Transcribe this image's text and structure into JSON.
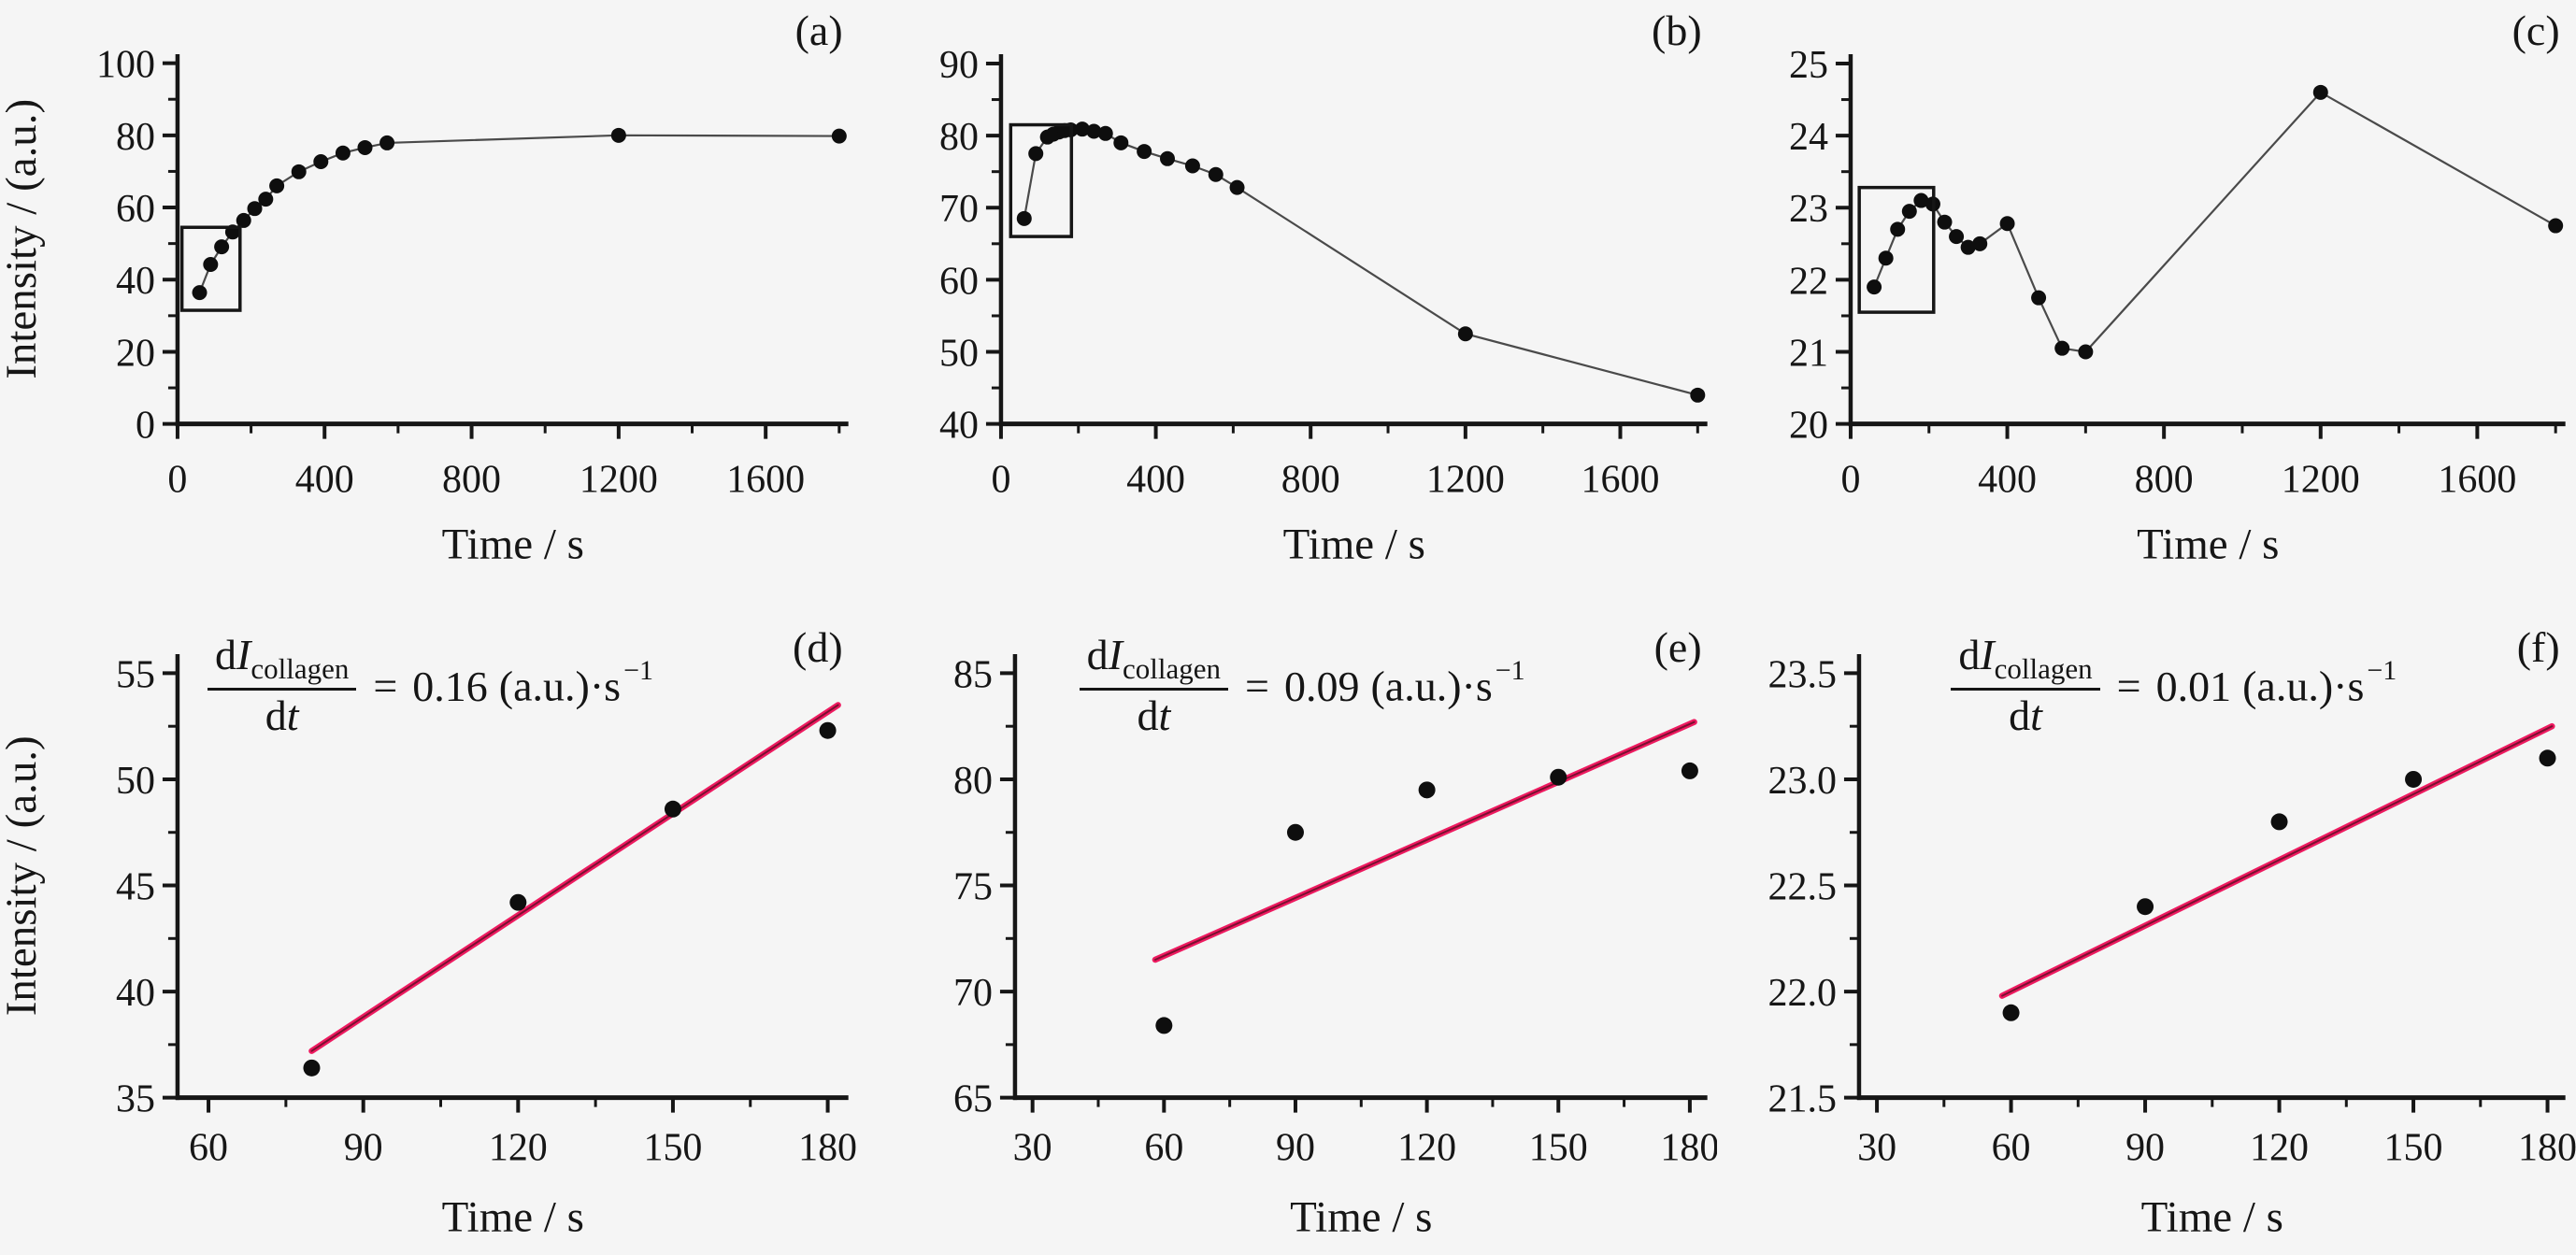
{
  "figure": {
    "background": "#f5f5f5",
    "accent_pink": "#ee1a60",
    "fit_core": "#7a1030",
    "axis_color": "#161616",
    "point_color": "#0e0e0e",
    "series_line_color": "#4a4a4a"
  },
  "chart_data": [
    {
      "id": "a",
      "label": "(a)",
      "type": "line",
      "xlabel": "Time / s",
      "ylabel": "Intensity / (a.u.)",
      "xlim": [
        0,
        1825
      ],
      "ylim": [
        0,
        102.5
      ],
      "xticks": [
        0,
        400,
        800,
        1200,
        1600
      ],
      "xticklabels": [
        "0",
        "400",
        "800",
        "1200",
        "1600"
      ],
      "xminor": [
        200,
        600,
        1000,
        1400,
        1800
      ],
      "yticks": [
        0,
        20,
        40,
        60,
        80,
        100
      ],
      "yticklabels": [
        "0",
        "20",
        "40",
        "60",
        "80",
        "100"
      ],
      "yminor": [
        10,
        30,
        50,
        70,
        90
      ],
      "connect": true,
      "points": [
        [
          60,
          36.4
        ],
        [
          90,
          44.2
        ],
        [
          120,
          49.1
        ],
        [
          150,
          53.2
        ],
        [
          180,
          56.4
        ],
        [
          210,
          59.7
        ],
        [
          240,
          62.3
        ],
        [
          270,
          66.0
        ],
        [
          330,
          69.9
        ],
        [
          390,
          72.7
        ],
        [
          450,
          75.1
        ],
        [
          510,
          76.6
        ],
        [
          570,
          77.9
        ],
        [
          1200,
          80.0
        ],
        [
          1800,
          79.8
        ]
      ],
      "inset_box": {
        "x0": 12,
        "x1": 170,
        "y0": 31.5,
        "y1": 54.5
      }
    },
    {
      "id": "b",
      "label": "(b)",
      "type": "line",
      "xlabel": "Time / s",
      "ylabel": "",
      "xlim": [
        0,
        1825
      ],
      "ylim": [
        40,
        91.3
      ],
      "xticks": [
        0,
        400,
        800,
        1200,
        1600
      ],
      "xticklabels": [
        "0",
        "400",
        "800",
        "1200",
        "1600"
      ],
      "xminor": [
        200,
        600,
        1000,
        1400,
        1800
      ],
      "yticks": [
        40,
        50,
        60,
        70,
        80,
        90
      ],
      "yticklabels": [
        "40",
        "50",
        "60",
        "70",
        "80",
        "90"
      ],
      "yminor": [
        45,
        55,
        65,
        75,
        85
      ],
      "connect": true,
      "points": [
        [
          60,
          68.5
        ],
        [
          90,
          77.5
        ],
        [
          120,
          79.8
        ],
        [
          135,
          80.2
        ],
        [
          150,
          80.5
        ],
        [
          165,
          80.7
        ],
        [
          180,
          80.8
        ],
        [
          210,
          80.9
        ],
        [
          240,
          80.6
        ],
        [
          270,
          80.3
        ],
        [
          310,
          79.0
        ],
        [
          370,
          77.8
        ],
        [
          430,
          76.8
        ],
        [
          495,
          75.8
        ],
        [
          555,
          74.6
        ],
        [
          610,
          72.8
        ],
        [
          1200,
          52.5
        ],
        [
          1800,
          44.0
        ]
      ],
      "inset_box": {
        "x0": 25,
        "x1": 182,
        "y0": 66.0,
        "y1": 81.5
      }
    },
    {
      "id": "c",
      "label": "(c)",
      "type": "line",
      "xlabel": "Time / s",
      "ylabel": "",
      "xlim": [
        0,
        1825
      ],
      "ylim": [
        20,
        25.13
      ],
      "xticks": [
        0,
        400,
        800,
        1200,
        1600
      ],
      "xticklabels": [
        "0",
        "400",
        "800",
        "1200",
        "1600"
      ],
      "xminor": [
        200,
        600,
        1000,
        1400,
        1800
      ],
      "yticks": [
        20,
        21,
        22,
        23,
        24,
        25
      ],
      "yticklabels": [
        "20",
        "21",
        "22",
        "23",
        "24",
        "25"
      ],
      "yminor": [
        20.5,
        21.5,
        22.5,
        23.5,
        24.5
      ],
      "connect": true,
      "points": [
        [
          60,
          21.9
        ],
        [
          90,
          22.3
        ],
        [
          120,
          22.7
        ],
        [
          150,
          22.95
        ],
        [
          180,
          23.1
        ],
        [
          210,
          23.05
        ],
        [
          240,
          22.8
        ],
        [
          270,
          22.6
        ],
        [
          300,
          22.45
        ],
        [
          330,
          22.5
        ],
        [
          400,
          22.78
        ],
        [
          480,
          21.75
        ],
        [
          540,
          21.05
        ],
        [
          600,
          21.0
        ],
        [
          1200,
          24.6
        ],
        [
          1800,
          22.75
        ]
      ],
      "inset_box": {
        "x0": 22,
        "x1": 212,
        "y0": 21.55,
        "y1": 23.28
      }
    },
    {
      "id": "d",
      "label": "(d)",
      "type": "scatter",
      "xlabel": "Time / s",
      "ylabel": "Intensity / (a.u.)",
      "xlim": [
        54,
        184
      ],
      "ylim": [
        35,
        55.9
      ],
      "xticks": [
        60,
        90,
        120,
        150,
        180
      ],
      "xticklabels": [
        "60",
        "90",
        "120",
        "150",
        "180"
      ],
      "xminor": [
        75,
        105,
        135,
        165
      ],
      "yticks": [
        35,
        40,
        45,
        50,
        55
      ],
      "yticklabels": [
        "35",
        "40",
        "45",
        "50",
        "55"
      ],
      "yminor": [
        37.5,
        42.5,
        47.5,
        52.5
      ],
      "connect": false,
      "points": [
        [
          80,
          36.4
        ],
        [
          120,
          44.2
        ],
        [
          150,
          48.6
        ],
        [
          180,
          52.3
        ]
      ],
      "fit_line": {
        "x0": 80,
        "y0": 37.2,
        "x1": 182,
        "y1": 53.5
      },
      "equation": {
        "d1": "d",
        "I": "I",
        "subscript": "collagen",
        "d2": "d",
        "t": "t",
        "equals": "=",
        "rate": "0.16",
        "unit": "(a.u.)·s",
        "exponent": "−1"
      }
    },
    {
      "id": "e",
      "label": "(e)",
      "type": "scatter",
      "xlabel": "Time / s",
      "ylabel": "",
      "xlim": [
        26,
        184
      ],
      "ylim": [
        65,
        85.9
      ],
      "xticks": [
        30,
        60,
        90,
        120,
        150,
        180
      ],
      "xticklabels": [
        "30",
        "60",
        "90",
        "120",
        "150",
        "180"
      ],
      "xminor": [
        45,
        75,
        105,
        135,
        165
      ],
      "yticks": [
        65,
        70,
        75,
        80,
        85
      ],
      "yticklabels": [
        "65",
        "70",
        "75",
        "80",
        "85"
      ],
      "yminor": [
        67.5,
        72.5,
        77.5,
        82.5
      ],
      "connect": false,
      "points": [
        [
          60,
          68.4
        ],
        [
          90,
          77.5
        ],
        [
          120,
          79.5
        ],
        [
          150,
          80.1
        ],
        [
          180,
          80.4
        ]
      ],
      "fit_line": {
        "x0": 58,
        "y0": 71.5,
        "x1": 181,
        "y1": 82.7
      },
      "equation": {
        "d1": "d",
        "I": "I",
        "subscript": "collagen",
        "d2": "d",
        "t": "t",
        "equals": "=",
        "rate": "0.09",
        "unit": "(a.u.)·s",
        "exponent": "−1"
      }
    },
    {
      "id": "f",
      "label": "(f)",
      "type": "scatter",
      "xlabel": "Time / s",
      "ylabel": "",
      "xlim": [
        26,
        184
      ],
      "ylim": [
        21.5,
        23.59
      ],
      "xticks": [
        30,
        60,
        90,
        120,
        150,
        180
      ],
      "xticklabels": [
        "30",
        "60",
        "90",
        "120",
        "150",
        "180"
      ],
      "xminor": [
        45,
        75,
        105,
        135,
        165
      ],
      "yticks": [
        21.5,
        22.0,
        22.5,
        23.0,
        23.5
      ],
      "yticklabels": [
        "21.5",
        "22.0",
        "22.5",
        "23.0",
        "23.5"
      ],
      "yminor": [
        21.75,
        22.25,
        22.75,
        23.25
      ],
      "connect": false,
      "points": [
        [
          60,
          21.9
        ],
        [
          90,
          22.4
        ],
        [
          120,
          22.8
        ],
        [
          150,
          23.0
        ],
        [
          180,
          23.1
        ]
      ],
      "fit_line": {
        "x0": 58,
        "y0": 21.98,
        "x1": 181,
        "y1": 23.25
      },
      "equation": {
        "d1": "d",
        "I": "I",
        "subscript": "collagen",
        "d2": "d",
        "t": "t",
        "equals": "=",
        "rate": "0.01",
        "unit": "(a.u.)·s",
        "exponent": "−1"
      }
    }
  ]
}
